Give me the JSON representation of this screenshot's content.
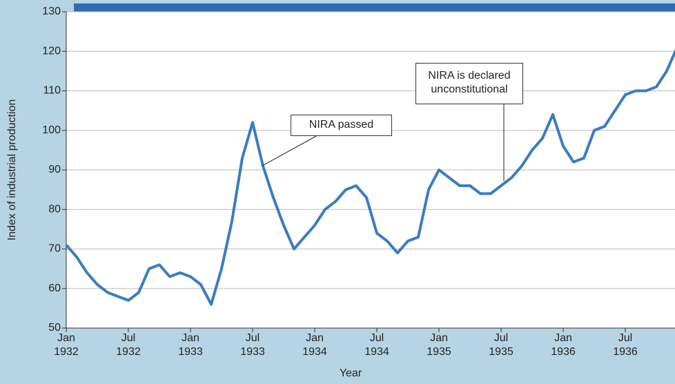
{
  "chart_data": {
    "type": "line",
    "x_label": "Year",
    "y_label": "Index of industrial production",
    "x": [
      "1932-01",
      "1932-02",
      "1932-03",
      "1932-04",
      "1932-05",
      "1932-06",
      "1932-07",
      "1932-08",
      "1932-09",
      "1932-10",
      "1932-11",
      "1932-12",
      "1933-01",
      "1933-02",
      "1933-03",
      "1933-04",
      "1933-05",
      "1933-06",
      "1933-07",
      "1933-08",
      "1933-09",
      "1933-10",
      "1933-11",
      "1933-12",
      "1934-01",
      "1934-02",
      "1934-03",
      "1934-04",
      "1934-05",
      "1934-06",
      "1934-07",
      "1934-08",
      "1934-09",
      "1934-10",
      "1934-11",
      "1934-12",
      "1935-01",
      "1935-02",
      "1935-03",
      "1935-04",
      "1935-05",
      "1935-06",
      "1935-07",
      "1935-08",
      "1935-09",
      "1935-10",
      "1935-11",
      "1935-12",
      "1936-01",
      "1936-02",
      "1936-03",
      "1936-04",
      "1936-05",
      "1936-06",
      "1936-07",
      "1936-08",
      "1936-09",
      "1936-10",
      "1936-11",
      "1936-12"
    ],
    "series": [
      {
        "name": "Index of industrial production",
        "color": "#3a7cc2",
        "values": [
          71,
          68,
          64,
          61,
          59,
          58,
          57,
          59,
          65,
          66,
          63,
          64,
          63,
          61,
          56,
          65,
          77,
          93,
          102,
          91,
          83,
          76,
          70,
          73,
          76,
          80,
          82,
          85,
          86,
          83,
          74,
          72,
          69,
          72,
          73,
          85,
          90,
          88,
          86,
          86,
          84,
          84,
          86,
          88,
          91,
          95,
          98,
          104,
          96,
          92,
          93,
          100,
          101,
          105,
          109,
          110,
          110,
          111,
          115,
          121
        ]
      }
    ],
    "xlim": [
      "1932-01",
      "1936-12"
    ],
    "xticks": [
      {
        "value": "1932-01",
        "label": "Jan 1932"
      },
      {
        "value": "1932-07",
        "label": "Jul 1932"
      },
      {
        "value": "1933-01",
        "label": "Jan 1933"
      },
      {
        "value": "1933-07",
        "label": "Jul 1933"
      },
      {
        "value": "1934-01",
        "label": "Jan 1934"
      },
      {
        "value": "1934-07",
        "label": "Jul 1934"
      },
      {
        "value": "1935-01",
        "label": "Jan 1935"
      },
      {
        "value": "1935-07",
        "label": "Jul 1935"
      },
      {
        "value": "1936-01",
        "label": "Jan 1936"
      },
      {
        "value": "1936-07",
        "label": "Jul 1936"
      }
    ],
    "ylim": [
      50,
      130
    ],
    "yticks": [
      50,
      60,
      70,
      80,
      90,
      100,
      110,
      120,
      130
    ],
    "grid": true,
    "annotations": [
      {
        "text": "NIRA passed"
      },
      {
        "text": "NIRA is declared unconstitutional"
      }
    ]
  }
}
